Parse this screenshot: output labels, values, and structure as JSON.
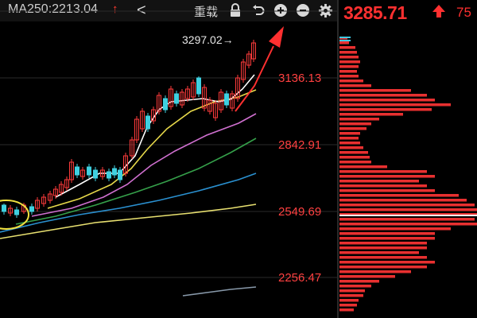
{
  "toolbar": {
    "ma_label": "MA250:2213.04",
    "ma_arrow": "↑",
    "back_label": "<",
    "reset_label": "重载"
  },
  "price": {
    "value": "3285.71",
    "arrow": "up",
    "change_pct": "75",
    "color": "#ff3030"
  },
  "axis": {
    "levels": [
      "3136.13",
      "2842.91",
      "2549.69",
      "2256.47"
    ]
  },
  "annotation": {
    "peak_label": "3297.02→"
  },
  "colors": {
    "up": "#ff3b3b",
    "down": "#3fd0e0",
    "ma5": "#ffffff",
    "ma10": "#e6d84a",
    "ma20": "#d070d0",
    "ma30": "#35a04a",
    "ma60": "#2a90d0",
    "ma120": "#e8e070",
    "ma250": "#8899aa"
  }
}
